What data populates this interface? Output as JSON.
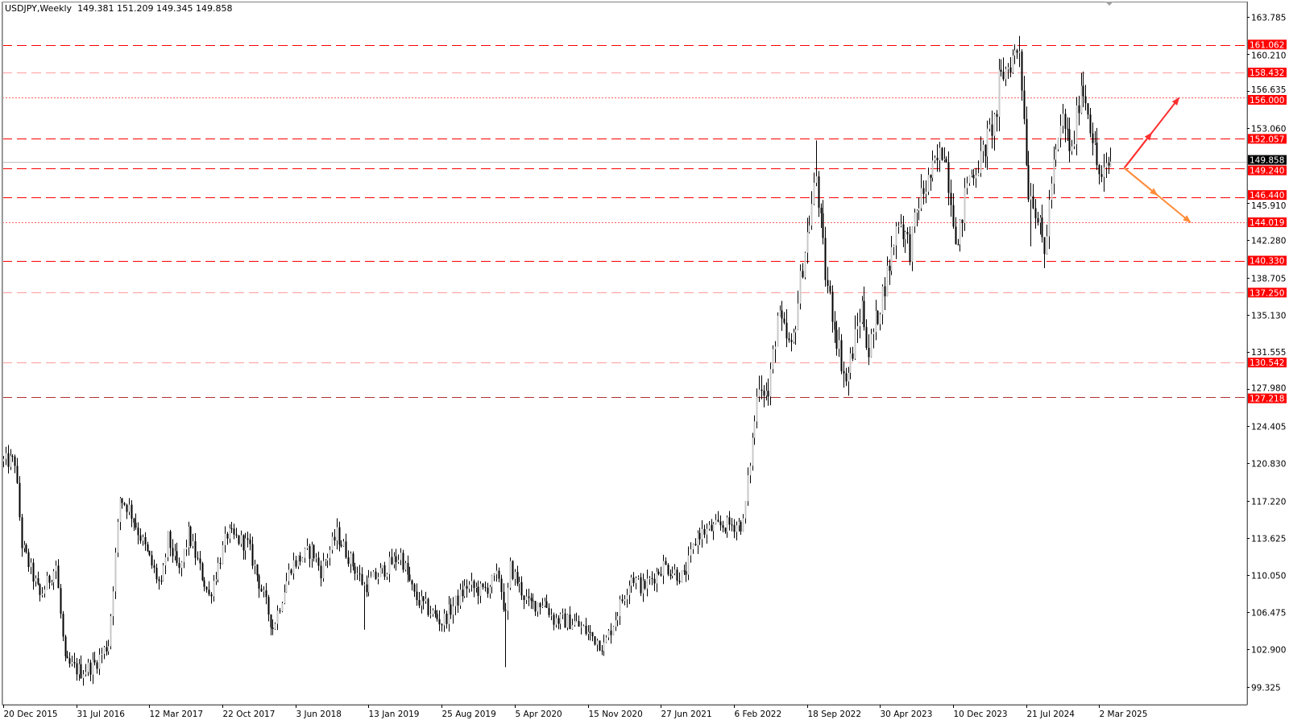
{
  "header": {
    "symbol_timeframe": "USDJPY,Weekly",
    "ohlc": "149.381 151.209 149.345 149.858"
  },
  "colors": {
    "level_red": "#ff0000",
    "level_pink": "#ff9c9c",
    "level_dotted": "#ff6060",
    "level_dark": "#b03030",
    "bull_candle": "#ffffff",
    "bear_candle": "#000000",
    "current_price_line": "#c0c0c0",
    "current_price_label_bg": "#000000",
    "arrow_up": "#ff3030",
    "arrow_down": "#ff8c3a"
  },
  "chart_data": {
    "type": "candlestick",
    "symbol": "USDJPY",
    "timeframe": "Weekly",
    "ylim": [
      99.325,
      163.785
    ],
    "grid": false,
    "y_ticks": [
      "163.785",
      "160.210",
      "156.635",
      "153.060",
      "145.910",
      "142.280",
      "138.705",
      "135.130",
      "131.555",
      "127.980",
      "124.405",
      "120.830",
      "117.220",
      "113.625",
      "110.050",
      "106.475",
      "102.900",
      "99.325"
    ],
    "x_ticks": [
      "20 Dec 2015",
      "31 Jul 2016",
      "12 Mar 2017",
      "22 Oct 2017",
      "3 Jun 2018",
      "13 Jan 2019",
      "25 Aug 2019",
      "5 Apr 2020",
      "15 Nov 2020",
      "27 Jun 2021",
      "6 Feb 2022",
      "18 Sep 2022",
      "30 Apr 2023",
      "10 Dec 2023",
      "21 Jul 2024",
      "2 Mar 2025"
    ],
    "current_price": "149.858",
    "levels": [
      {
        "price": "161.062",
        "style": "dashed",
        "color": "level_red"
      },
      {
        "price": "158.432",
        "style": "dashed",
        "color": "level_pink"
      },
      {
        "price": "156.000",
        "style": "dotted",
        "color": "level_dotted"
      },
      {
        "price": "152.057",
        "style": "dashed",
        "color": "level_red"
      },
      {
        "price": "149.240",
        "style": "dashed",
        "color": "level_red"
      },
      {
        "price": "146.440",
        "style": "dashed",
        "color": "level_red"
      },
      {
        "price": "144.019",
        "style": "dotted",
        "color": "level_dotted"
      },
      {
        "price": "140.330",
        "style": "dashed",
        "color": "level_red"
      },
      {
        "price": "137.250",
        "style": "dashed",
        "color": "level_pink"
      },
      {
        "price": "130.542",
        "style": "dashed",
        "color": "level_pink"
      },
      {
        "price": "127.218",
        "style": "dashed",
        "color": "level_dark"
      }
    ],
    "arrows": [
      {
        "from": [
          "2025-05-18",
          149.24
        ],
        "to": [
          "2025-11-02",
          156.0
        ],
        "color": "arrow_up"
      },
      {
        "from": [
          "2025-05-18",
          149.24
        ],
        "to": [
          "2025-12-07",
          144.02
        ],
        "color": "arrow_down"
      }
    ],
    "close_path_estimated": [
      [
        "2015-12-20",
        121.0
      ],
      [
        "2016-01-24",
        121.0
      ],
      [
        "2016-02-14",
        113.0
      ],
      [
        "2016-04-10",
        108.0
      ],
      [
        "2016-05-29",
        111.0
      ],
      [
        "2016-06-26",
        101.5
      ],
      [
        "2016-08-14",
        100.8
      ],
      [
        "2016-09-25",
        101.5
      ],
      [
        "2016-11-06",
        103.5
      ],
      [
        "2016-12-11",
        117.5
      ],
      [
        "2017-01-08",
        116.5
      ],
      [
        "2017-04-16",
        108.8
      ],
      [
        "2017-05-07",
        113.5
      ],
      [
        "2017-06-11",
        110.3
      ],
      [
        "2017-07-09",
        114.0
      ],
      [
        "2017-09-10",
        108.0
      ],
      [
        "2017-11-05",
        114.0
      ],
      [
        "2018-01-07",
        113.0
      ],
      [
        "2018-03-25",
        105.0
      ],
      [
        "2018-05-20",
        111.0
      ],
      [
        "2018-07-22",
        112.5
      ],
      [
        "2018-08-19",
        110.5
      ],
      [
        "2018-10-07",
        114.0
      ],
      [
        "2018-12-30",
        109.0
      ],
      [
        "2019-01-20",
        109.5
      ],
      [
        "2019-04-21",
        112.0
      ],
      [
        "2019-06-02",
        108.0
      ],
      [
        "2019-08-25",
        105.5
      ],
      [
        "2019-11-10",
        109.0
      ],
      [
        "2019-12-29",
        108.5
      ],
      [
        "2020-02-16",
        110.0
      ],
      [
        "2020-03-08",
        106.0
      ],
      [
        "2020-03-22",
        110.8
      ],
      [
        "2020-05-17",
        107.2
      ],
      [
        "2020-07-05",
        107.5
      ],
      [
        "2020-08-02",
        105.8
      ],
      [
        "2020-10-04",
        105.5
      ],
      [
        "2020-12-13",
        103.8
      ],
      [
        "2021-01-03",
        103.2
      ],
      [
        "2021-03-28",
        110.0
      ],
      [
        "2021-05-02",
        108.8
      ],
      [
        "2021-07-04",
        111.0
      ],
      [
        "2021-09-05",
        109.8
      ],
      [
        "2021-10-17",
        114.0
      ],
      [
        "2021-12-26",
        114.8
      ],
      [
        "2022-03-06",
        115.0
      ],
      [
        "2022-04-24",
        129.0
      ],
      [
        "2022-05-22",
        127.2
      ],
      [
        "2022-06-19",
        135.0
      ],
      [
        "2022-08-01",
        131.5
      ],
      [
        "2022-09-04",
        140.0
      ],
      [
        "2022-10-16",
        148.5
      ],
      [
        "2022-11-13",
        139.0
      ],
      [
        "2022-12-18",
        133.0
      ],
      [
        "2023-01-15",
        128.5
      ],
      [
        "2023-03-05",
        136.0
      ],
      [
        "2023-03-26",
        131.5
      ],
      [
        "2023-05-28",
        140.0
      ],
      [
        "2023-06-25",
        144.5
      ],
      [
        "2023-07-30",
        141.5
      ],
      [
        "2023-08-27",
        146.0
      ],
      [
        "2023-11-12",
        151.3
      ],
      [
        "2023-12-24",
        141.5
      ],
      [
        "2024-01-21",
        148.0
      ],
      [
        "2024-03-03",
        150.0
      ],
      [
        "2024-04-21",
        154.5
      ],
      [
        "2024-04-28",
        157.5
      ],
      [
        "2024-06-30",
        161.0
      ],
      [
        "2024-07-28",
        147.0
      ],
      [
        "2024-08-11",
        146.5
      ],
      [
        "2024-09-15",
        141.0
      ],
      [
        "2024-10-06",
        148.0
      ],
      [
        "2024-11-10",
        154.0
      ],
      [
        "2024-12-08",
        150.5
      ],
      [
        "2025-01-05",
        157.5
      ],
      [
        "2025-01-26",
        155.0
      ],
      [
        "2025-02-23",
        149.5
      ],
      [
        "2025-03-09",
        148.0
      ],
      [
        "2025-04-06",
        149.858
      ]
    ],
    "notable_wicks": [
      [
        "2019-01-01",
        "low",
        104.8
      ],
      [
        "2020-03-08",
        "low",
        101.2
      ],
      [
        "2022-10-16",
        "high",
        151.9
      ],
      [
        "2024-06-30",
        "high",
        161.95
      ],
      [
        "2024-08-04",
        "low",
        141.7
      ],
      [
        "2024-09-15",
        "low",
        139.6
      ]
    ]
  }
}
